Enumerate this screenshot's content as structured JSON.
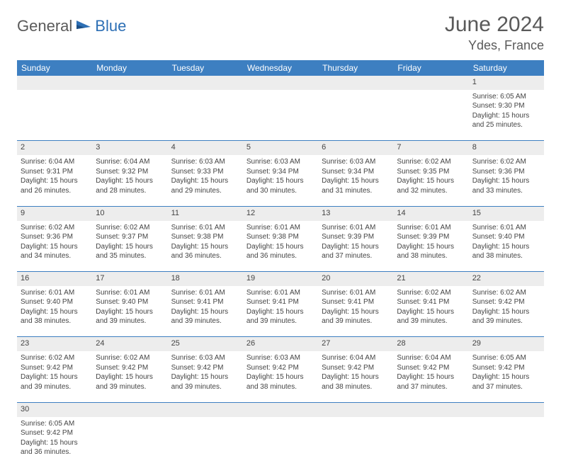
{
  "logo": {
    "part1": "General",
    "part2": "Blue"
  },
  "title": "June 2024",
  "location": "Ydes, France",
  "headers": [
    "Sunday",
    "Monday",
    "Tuesday",
    "Wednesday",
    "Thursday",
    "Friday",
    "Saturday"
  ],
  "colors": {
    "header_bg": "#3d7fc1",
    "header_text": "#ffffff",
    "numrow_bg": "#ededed",
    "border": "#3d7fc1",
    "text": "#444444",
    "logo_gray": "#5a5a5a",
    "logo_blue": "#2d6fb5"
  },
  "weeks": [
    [
      null,
      null,
      null,
      null,
      null,
      null,
      {
        "n": "1",
        "sr": "6:05 AM",
        "ss": "9:30 PM",
        "dl": "15 hours and 25 minutes."
      }
    ],
    [
      {
        "n": "2",
        "sr": "6:04 AM",
        "ss": "9:31 PM",
        "dl": "15 hours and 26 minutes."
      },
      {
        "n": "3",
        "sr": "6:04 AM",
        "ss": "9:32 PM",
        "dl": "15 hours and 28 minutes."
      },
      {
        "n": "4",
        "sr": "6:03 AM",
        "ss": "9:33 PM",
        "dl": "15 hours and 29 minutes."
      },
      {
        "n": "5",
        "sr": "6:03 AM",
        "ss": "9:34 PM",
        "dl": "15 hours and 30 minutes."
      },
      {
        "n": "6",
        "sr": "6:03 AM",
        "ss": "9:34 PM",
        "dl": "15 hours and 31 minutes."
      },
      {
        "n": "7",
        "sr": "6:02 AM",
        "ss": "9:35 PM",
        "dl": "15 hours and 32 minutes."
      },
      {
        "n": "8",
        "sr": "6:02 AM",
        "ss": "9:36 PM",
        "dl": "15 hours and 33 minutes."
      }
    ],
    [
      {
        "n": "9",
        "sr": "6:02 AM",
        "ss": "9:36 PM",
        "dl": "15 hours and 34 minutes."
      },
      {
        "n": "10",
        "sr": "6:02 AM",
        "ss": "9:37 PM",
        "dl": "15 hours and 35 minutes."
      },
      {
        "n": "11",
        "sr": "6:01 AM",
        "ss": "9:38 PM",
        "dl": "15 hours and 36 minutes."
      },
      {
        "n": "12",
        "sr": "6:01 AM",
        "ss": "9:38 PM",
        "dl": "15 hours and 36 minutes."
      },
      {
        "n": "13",
        "sr": "6:01 AM",
        "ss": "9:39 PM",
        "dl": "15 hours and 37 minutes."
      },
      {
        "n": "14",
        "sr": "6:01 AM",
        "ss": "9:39 PM",
        "dl": "15 hours and 38 minutes."
      },
      {
        "n": "15",
        "sr": "6:01 AM",
        "ss": "9:40 PM",
        "dl": "15 hours and 38 minutes."
      }
    ],
    [
      {
        "n": "16",
        "sr": "6:01 AM",
        "ss": "9:40 PM",
        "dl": "15 hours and 38 minutes."
      },
      {
        "n": "17",
        "sr": "6:01 AM",
        "ss": "9:40 PM",
        "dl": "15 hours and 39 minutes."
      },
      {
        "n": "18",
        "sr": "6:01 AM",
        "ss": "9:41 PM",
        "dl": "15 hours and 39 minutes."
      },
      {
        "n": "19",
        "sr": "6:01 AM",
        "ss": "9:41 PM",
        "dl": "15 hours and 39 minutes."
      },
      {
        "n": "20",
        "sr": "6:01 AM",
        "ss": "9:41 PM",
        "dl": "15 hours and 39 minutes."
      },
      {
        "n": "21",
        "sr": "6:02 AM",
        "ss": "9:41 PM",
        "dl": "15 hours and 39 minutes."
      },
      {
        "n": "22",
        "sr": "6:02 AM",
        "ss": "9:42 PM",
        "dl": "15 hours and 39 minutes."
      }
    ],
    [
      {
        "n": "23",
        "sr": "6:02 AM",
        "ss": "9:42 PM",
        "dl": "15 hours and 39 minutes."
      },
      {
        "n": "24",
        "sr": "6:02 AM",
        "ss": "9:42 PM",
        "dl": "15 hours and 39 minutes."
      },
      {
        "n": "25",
        "sr": "6:03 AM",
        "ss": "9:42 PM",
        "dl": "15 hours and 39 minutes."
      },
      {
        "n": "26",
        "sr": "6:03 AM",
        "ss": "9:42 PM",
        "dl": "15 hours and 38 minutes."
      },
      {
        "n": "27",
        "sr": "6:04 AM",
        "ss": "9:42 PM",
        "dl": "15 hours and 38 minutes."
      },
      {
        "n": "28",
        "sr": "6:04 AM",
        "ss": "9:42 PM",
        "dl": "15 hours and 37 minutes."
      },
      {
        "n": "29",
        "sr": "6:05 AM",
        "ss": "9:42 PM",
        "dl": "15 hours and 37 minutes."
      }
    ],
    [
      {
        "n": "30",
        "sr": "6:05 AM",
        "ss": "9:42 PM",
        "dl": "15 hours and 36 minutes."
      },
      null,
      null,
      null,
      null,
      null,
      null
    ]
  ],
  "labels": {
    "sunrise": "Sunrise: ",
    "sunset": "Sunset: ",
    "daylight": "Daylight: "
  }
}
